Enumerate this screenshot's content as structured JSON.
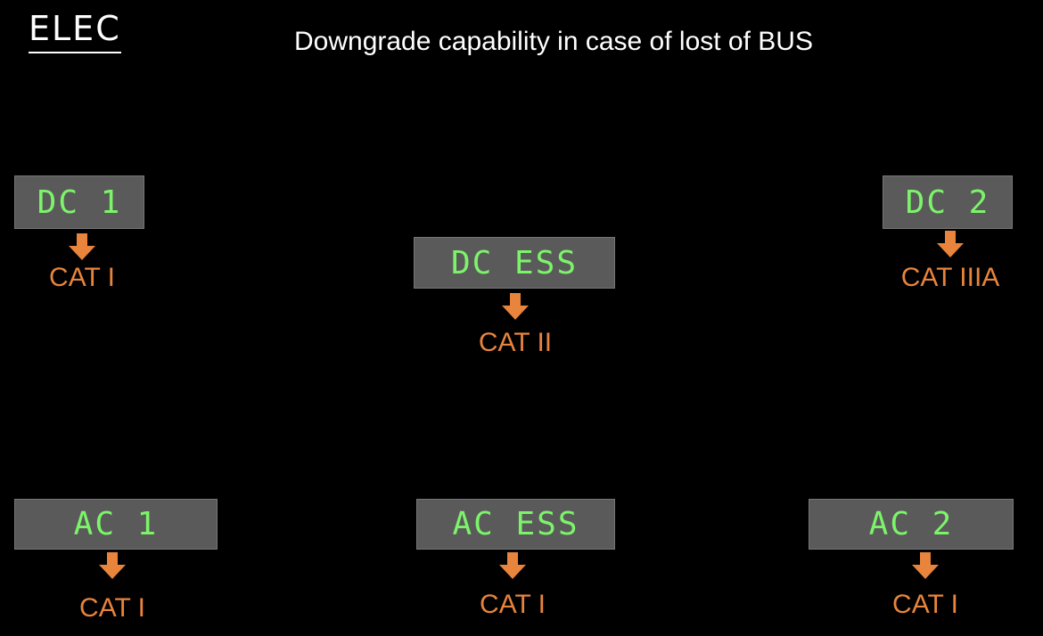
{
  "header": {
    "logo": "ELEC",
    "title": "Downgrade capability in case of lost of BUS"
  },
  "nodes": [
    {
      "label": "DC 1",
      "capability": "CAT I"
    },
    {
      "label": "DC ESS",
      "capability": "CAT II"
    },
    {
      "label": "DC 2",
      "capability": "CAT IIIA"
    },
    {
      "label": "AC 1",
      "capability": "CAT I"
    },
    {
      "label": "AC ESS",
      "capability": "CAT I"
    },
    {
      "label": "AC 2",
      "capability": "CAT I"
    }
  ]
}
